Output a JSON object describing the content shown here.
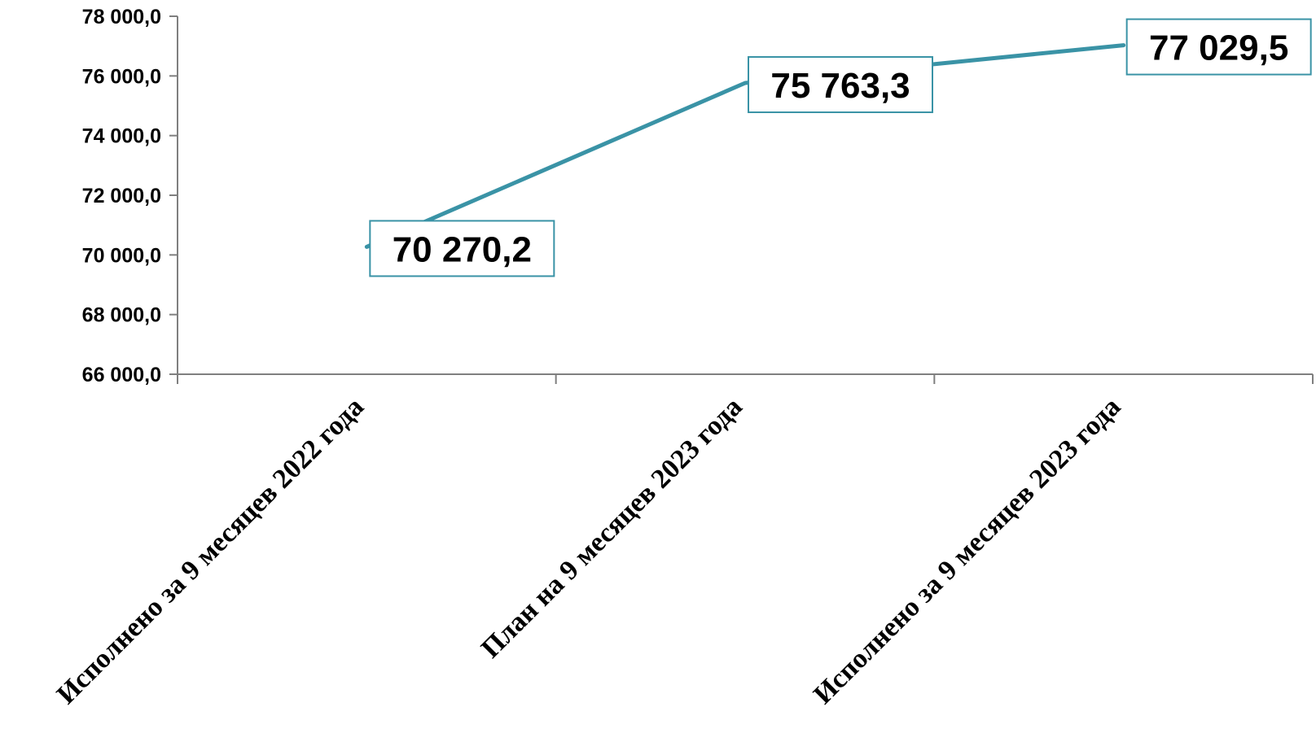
{
  "chart_data": {
    "type": "line",
    "title": "",
    "xlabel": "",
    "ylabel": "",
    "categories": [
      "Исполнено за 9 месяцев 2022 года",
      "План на 9 месяцев 2023 года",
      "Исполнено за 9 месяцев 2023 года"
    ],
    "series": [
      {
        "values": [
          70270.2,
          75763.3,
          77029.5
        ],
        "data_labels": [
          "70 270,2",
          "75 763,3",
          "77 029,5"
        ],
        "color": "#3a93a6"
      }
    ],
    "ylim": [
      66000,
      78000
    ],
    "yticks": [
      66000,
      68000,
      70000,
      72000,
      74000,
      76000,
      78000
    ],
    "ytick_labels": [
      "66 000,0",
      "68 000,0",
      "70 000,0",
      "72 000,0",
      "74 000,0",
      "76 000,0",
      "78 000,0"
    ],
    "grid": false,
    "legend": "none"
  }
}
